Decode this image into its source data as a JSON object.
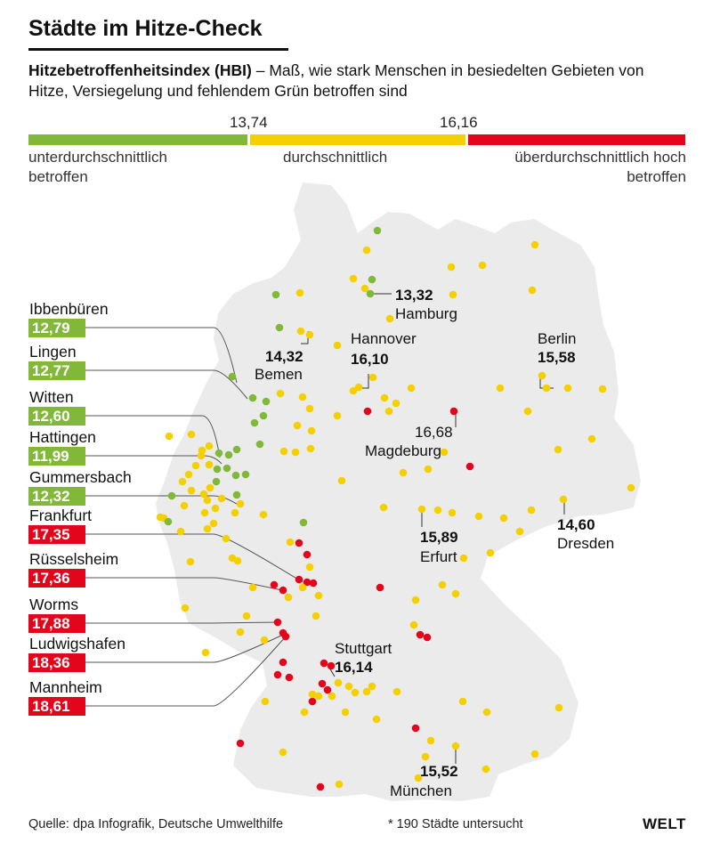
{
  "header": {
    "title": "Städte im Hitze-Check",
    "subtitle_bold": "Hitzebetroffenheitsindex (HBI)",
    "subtitle_rest": " – Maß, wie stark Menschen in besiedelten Gebieten von Hitze, Versiegelung und fehlendem Grün betroffen sind"
  },
  "legend": {
    "threshold_low": "13,74",
    "threshold_high": "16,16",
    "low_label": "unterdurchschnittlich betroffen",
    "mid_label": "durchschnittlich",
    "high_label": "überdurchschnittlich hoch betroffen"
  },
  "colors": {
    "low": "#82b83a",
    "mid": "#f4d000",
    "high": "#e3051b",
    "land": "#ebebeb",
    "text": "#111111"
  },
  "cities_left": [
    {
      "name": "Ibbenbüren",
      "value": "12,79",
      "level": "low"
    },
    {
      "name": "Lingen",
      "value": "12,77",
      "level": "low"
    },
    {
      "name": "Witten",
      "value": "12,60",
      "level": "low"
    },
    {
      "name": "Hattingen",
      "value": "11,99",
      "level": "low"
    },
    {
      "name": "Gummersbach",
      "value": "12,32",
      "level": "low"
    },
    {
      "name": "Frankfurt",
      "value": "17,35",
      "level": "high"
    },
    {
      "name": "Rüsselsheim",
      "value": "17,36",
      "level": "high"
    },
    {
      "name": "Worms",
      "value": "17,88",
      "level": "high"
    },
    {
      "name": "Ludwigshafen",
      "value": "18,36",
      "level": "high"
    },
    {
      "name": "Mannheim",
      "value": "18,61",
      "level": "high"
    }
  ],
  "cities_map": {
    "hamburg": {
      "name": "Hamburg",
      "value": "13,32"
    },
    "bremen": {
      "name": "Bemen",
      "value": "14,32"
    },
    "hannover": {
      "name": "Hannover",
      "value": "16,10"
    },
    "berlin": {
      "name": "Berlin",
      "value": "15,58"
    },
    "magdeburg": {
      "name": "Magdeburg",
      "value": "16,68"
    },
    "dresden": {
      "name": "Dresden",
      "value": "14,60"
    },
    "erfurt": {
      "name": "Erfurt",
      "value": "15,89"
    },
    "stuttgart": {
      "name": "Stuttgart",
      "value": "16,14"
    },
    "muenchen": {
      "name": "München",
      "value": "15,52"
    }
  },
  "footer": {
    "source": "Quelle: dpa Infografik, Deutsche Umwelthilfe",
    "note": "* 190 Städte untersucht",
    "logo": "WELT"
  }
}
